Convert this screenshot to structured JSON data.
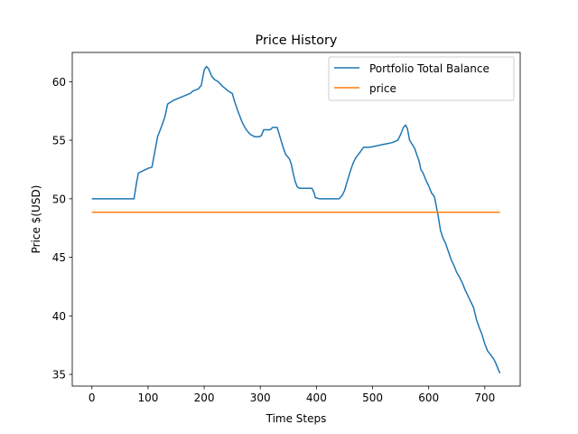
{
  "chart_data": {
    "type": "line",
    "title": "Price History",
    "xlabel": "Time Steps",
    "ylabel": "Price $(USD)",
    "xlim": [
      -35,
      763
    ],
    "ylim": [
      34.0,
      62.5
    ],
    "xticks": [
      0,
      100,
      200,
      300,
      400,
      500,
      600,
      700
    ],
    "yticks": [
      35,
      40,
      45,
      50,
      55,
      60
    ],
    "grid": false,
    "legend_position": "top-right",
    "series": [
      {
        "name": "Portfolio Total Balance",
        "color": "#1f77b4",
        "points": [
          [
            0,
            50.0
          ],
          [
            75,
            50.0
          ],
          [
            80,
            51.5
          ],
          [
            83,
            52.2
          ],
          [
            100,
            52.6
          ],
          [
            107,
            52.7
          ],
          [
            117,
            55.3
          ],
          [
            125,
            56.3
          ],
          [
            130,
            57.0
          ],
          [
            135,
            58.1
          ],
          [
            145,
            58.4
          ],
          [
            155,
            58.6
          ],
          [
            165,
            58.8
          ],
          [
            175,
            59.0
          ],
          [
            180,
            59.2
          ],
          [
            190,
            59.4
          ],
          [
            195,
            59.7
          ],
          [
            200,
            61.0
          ],
          [
            204,
            61.3
          ],
          [
            208,
            61.1
          ],
          [
            213,
            60.5
          ],
          [
            218,
            60.2
          ],
          [
            225,
            60.0
          ],
          [
            233,
            59.6
          ],
          [
            243,
            59.2
          ],
          [
            250,
            59.0
          ],
          [
            255,
            58.2
          ],
          [
            260,
            57.5
          ],
          [
            268,
            56.5
          ],
          [
            275,
            55.9
          ],
          [
            282,
            55.5
          ],
          [
            290,
            55.3
          ],
          [
            298,
            55.3
          ],
          [
            302,
            55.4
          ],
          [
            306,
            55.9
          ],
          [
            318,
            55.9
          ],
          [
            322,
            56.1
          ],
          [
            330,
            56.1
          ],
          [
            335,
            55.3
          ],
          [
            340,
            54.5
          ],
          [
            345,
            53.8
          ],
          [
            352,
            53.4
          ],
          [
            355,
            53.0
          ],
          [
            358,
            52.3
          ],
          [
            362,
            51.5
          ],
          [
            366,
            51.0
          ],
          [
            370,
            50.9
          ],
          [
            392,
            50.9
          ],
          [
            396,
            50.5
          ],
          [
            398,
            50.1
          ],
          [
            405,
            50.0
          ],
          [
            440,
            50.0
          ],
          [
            446,
            50.3
          ],
          [
            450,
            50.7
          ],
          [
            455,
            51.5
          ],
          [
            460,
            52.3
          ],
          [
            465,
            53.0
          ],
          [
            470,
            53.5
          ],
          [
            478,
            54.0
          ],
          [
            484,
            54.4
          ],
          [
            495,
            54.4
          ],
          [
            505,
            54.5
          ],
          [
            515,
            54.6
          ],
          [
            525,
            54.7
          ],
          [
            535,
            54.8
          ],
          [
            545,
            55.0
          ],
          [
            550,
            55.5
          ],
          [
            555,
            56.1
          ],
          [
            559,
            56.3
          ],
          [
            562,
            56.0
          ],
          [
            566,
            55.0
          ],
          [
            570,
            54.7
          ],
          [
            575,
            54.3
          ],
          [
            580,
            53.6
          ],
          [
            583,
            53.2
          ],
          [
            586,
            52.5
          ],
          [
            590,
            52.2
          ],
          [
            595,
            51.6
          ],
          [
            600,
            51.1
          ],
          [
            605,
            50.5
          ],
          [
            610,
            50.2
          ],
          [
            613,
            49.5
          ],
          [
            617,
            48.5
          ],
          [
            621,
            47.3
          ],
          [
            625,
            46.7
          ],
          [
            630,
            46.2
          ],
          [
            635,
            45.5
          ],
          [
            640,
            44.8
          ],
          [
            645,
            44.3
          ],
          [
            650,
            43.7
          ],
          [
            655,
            43.3
          ],
          [
            660,
            42.8
          ],
          [
            665,
            42.2
          ],
          [
            670,
            41.7
          ],
          [
            675,
            41.2
          ],
          [
            680,
            40.7
          ],
          [
            685,
            39.7
          ],
          [
            690,
            39.0
          ],
          [
            695,
            38.4
          ],
          [
            700,
            37.6
          ],
          [
            705,
            37.0
          ],
          [
            710,
            36.7
          ],
          [
            716,
            36.3
          ],
          [
            720,
            35.9
          ],
          [
            725,
            35.3
          ],
          [
            727,
            35.1
          ]
        ]
      },
      {
        "name": "price",
        "color": "#ff7f0e",
        "points": [
          [
            0,
            48.85
          ],
          [
            727,
            48.85
          ]
        ]
      }
    ]
  }
}
